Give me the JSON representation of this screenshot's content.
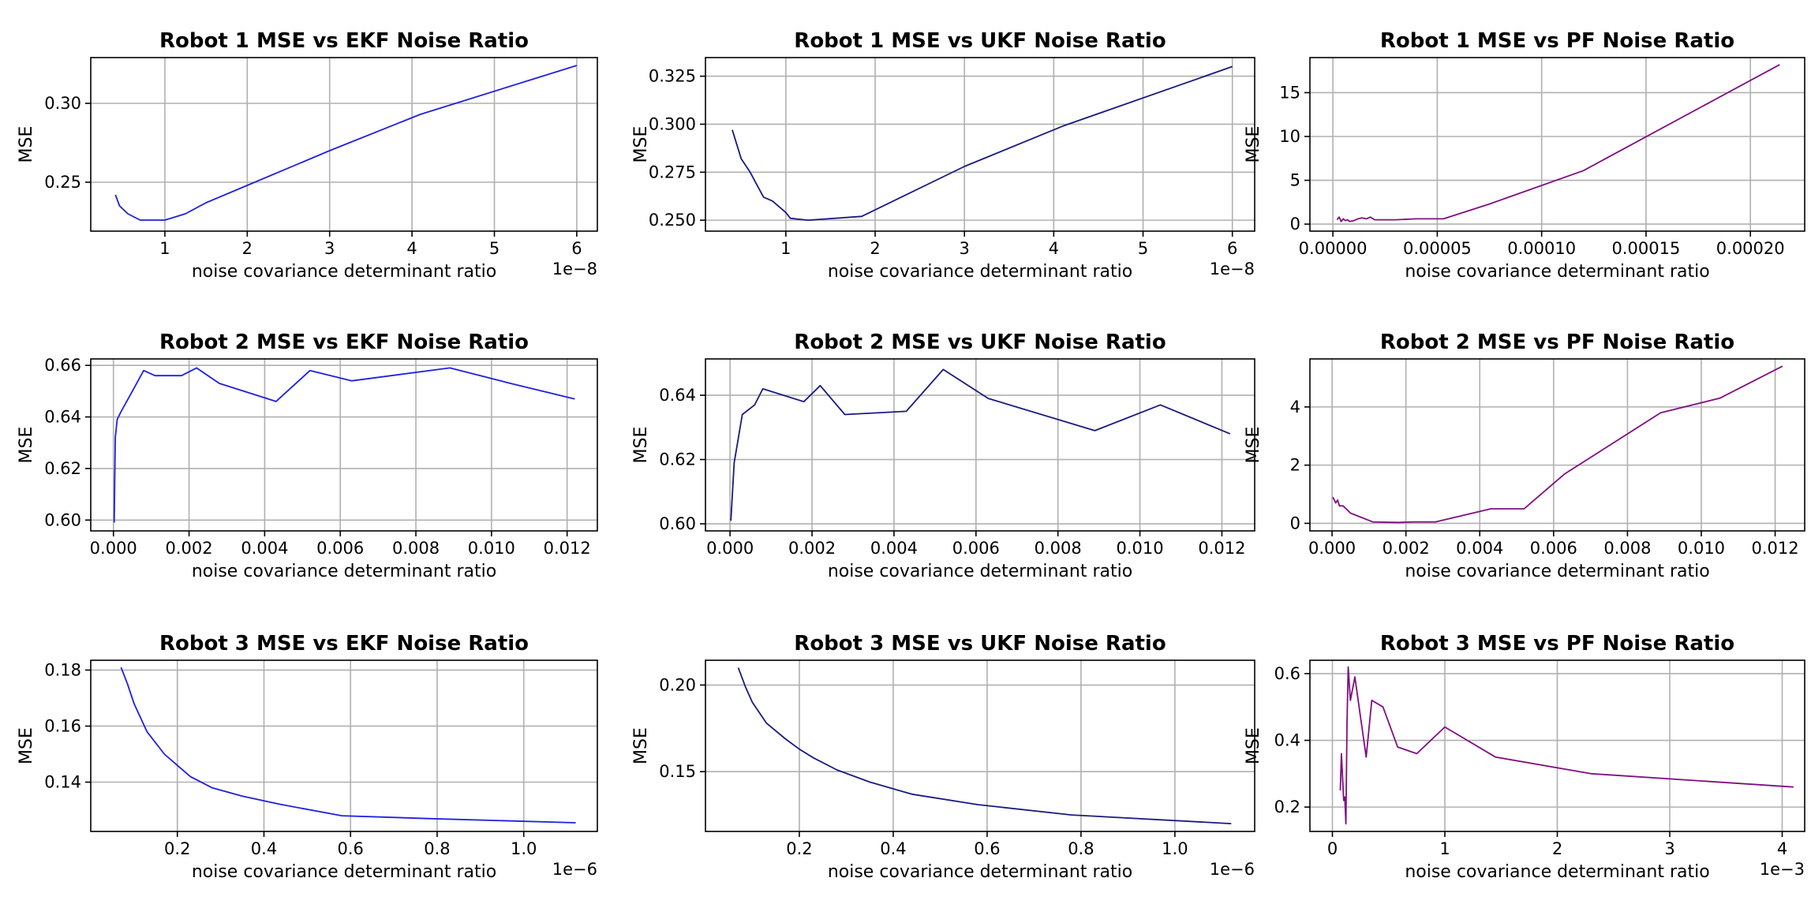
{
  "chart_data": [
    {
      "type": "line",
      "title": "Robot 1 MSE vs EKF Noise Ratio",
      "xlabel": "noise covariance determinant ratio",
      "ylabel": "MSE",
      "offset_label": "1e−8",
      "xlim": [
        0.1,
        6.25
      ],
      "ylim": [
        0.219,
        0.329
      ],
      "x_ticks": [
        1,
        2,
        3,
        4,
        5,
        6
      ],
      "x_tick_labels": [
        "1",
        "2",
        "3",
        "4",
        "5",
        "6"
      ],
      "y_ticks": [
        0.25,
        0.3
      ],
      "y_tick_labels": [
        "0.25",
        "0.30"
      ],
      "grid": true,
      "color": "#1f1fdf",
      "series": [
        {
          "x": [
            0.4,
            0.45,
            0.55,
            0.7,
            0.85,
            1.0,
            1.25,
            1.5,
            2.0,
            3.0,
            4.1,
            6.0
          ],
          "y": [
            0.242,
            0.235,
            0.23,
            0.226,
            0.226,
            0.226,
            0.23,
            0.237,
            0.248,
            0.27,
            0.293,
            0.324
          ]
        }
      ]
    },
    {
      "type": "line",
      "title": "Robot 1 MSE vs UKF Noise Ratio",
      "xlabel": "noise covariance determinant ratio",
      "ylabel": "MSE",
      "offset_label": "1e−8",
      "xlim": [
        0.1,
        6.25
      ],
      "ylim": [
        0.2443,
        0.3347
      ],
      "x_ticks": [
        1,
        2,
        3,
        4,
        5,
        6
      ],
      "x_tick_labels": [
        "1",
        "2",
        "3",
        "4",
        "5",
        "6"
      ],
      "y_ticks": [
        0.25,
        0.275,
        0.3,
        0.325
      ],
      "y_tick_labels": [
        "0.250",
        "0.275",
        "0.300",
        "0.325"
      ],
      "grid": true,
      "color": "#1a1a80",
      "series": [
        {
          "x": [
            0.4,
            0.5,
            0.6,
            0.75,
            0.85,
            1.0,
            1.05,
            1.25,
            1.85,
            3.0,
            4.1,
            6.0
          ],
          "y": [
            0.297,
            0.282,
            0.275,
            0.262,
            0.26,
            0.254,
            0.251,
            0.25,
            0.252,
            0.278,
            0.299,
            0.33
          ]
        }
      ]
    },
    {
      "type": "line",
      "title": "Robot 1 MSE vs PF Noise Ratio",
      "xlabel": "noise covariance determinant ratio",
      "ylabel": "MSE",
      "offset_label": "",
      "xlim": [
        -1.1e-05,
        0.000226
      ],
      "ylim": [
        -0.8,
        19.0
      ],
      "x_ticks": [
        0.0,
        5e-05,
        0.0001,
        0.00015,
        0.0002
      ],
      "x_tick_labels": [
        "0.00000",
        "0.00005",
        "0.00010",
        "0.00015",
        "0.00020"
      ],
      "y_ticks": [
        0,
        5,
        10,
        15
      ],
      "y_tick_labels": [
        "0",
        "5",
        "10",
        "15"
      ],
      "grid": true,
      "color": "#7f0f7f",
      "series": [
        {
          "x": [
            2e-06,
            3e-06,
            4e-06,
            5e-06,
            6e-06,
            7e-06,
            8e-06,
            1e-05,
            1.2e-05,
            1.4e-05,
            1.6e-05,
            1.8e-05,
            2e-05,
            3e-05,
            4e-05,
            5.3e-05,
            7.5e-05,
            0.00012,
            0.000214
          ],
          "y": [
            0.5,
            0.8,
            0.3,
            0.6,
            0.4,
            0.5,
            0.3,
            0.4,
            0.6,
            0.7,
            0.6,
            0.8,
            0.5,
            0.5,
            0.6,
            0.6,
            2.3,
            6.1,
            18.2
          ]
        }
      ]
    },
    {
      "type": "line",
      "title": "Robot 2 MSE vs EKF Noise Ratio",
      "xlabel": "noise covariance determinant ratio",
      "ylabel": "MSE",
      "offset_label": "",
      "xlim": [
        -0.0006,
        0.0128
      ],
      "ylim": [
        0.5958,
        0.6625
      ],
      "x_ticks": [
        0.0,
        0.002,
        0.004,
        0.006,
        0.008,
        0.01,
        0.012
      ],
      "x_tick_labels": [
        "0.000",
        "0.002",
        "0.004",
        "0.006",
        "0.008",
        "0.010",
        "0.012"
      ],
      "y_ticks": [
        0.6,
        0.62,
        0.64,
        0.66
      ],
      "y_tick_labels": [
        "0.60",
        "0.62",
        "0.64",
        "0.66"
      ],
      "grid": true,
      "color": "#1f1fdf",
      "series": [
        {
          "x": [
            2e-05,
            5e-05,
            0.0001,
            0.0002,
            0.0005,
            0.0008,
            0.0011,
            0.0018,
            0.0022,
            0.0028,
            0.0043,
            0.0052,
            0.0063,
            0.0089,
            0.0105,
            0.0122
          ],
          "y": [
            0.599,
            0.632,
            0.639,
            0.642,
            0.65,
            0.658,
            0.656,
            0.656,
            0.659,
            0.653,
            0.646,
            0.658,
            0.654,
            0.659,
            0.653,
            0.647
          ]
        }
      ]
    },
    {
      "type": "line",
      "title": "Robot 2 MSE vs UKF Noise Ratio",
      "xlabel": "noise covariance determinant ratio",
      "ylabel": "MSE",
      "offset_label": "",
      "xlim": [
        -0.0006,
        0.0128
      ],
      "ylim": [
        0.5978,
        0.6513
      ],
      "x_ticks": [
        0.0,
        0.002,
        0.004,
        0.006,
        0.008,
        0.01,
        0.012
      ],
      "x_tick_labels": [
        "0.000",
        "0.002",
        "0.004",
        "0.006",
        "0.008",
        "0.010",
        "0.012"
      ],
      "y_ticks": [
        0.6,
        0.62,
        0.64
      ],
      "y_tick_labels": [
        "0.60",
        "0.62",
        "0.64"
      ],
      "grid": true,
      "color": "#1a1a80",
      "series": [
        {
          "x": [
            2e-05,
            0.0001,
            0.0003,
            0.0006,
            0.0008,
            0.0018,
            0.0022,
            0.0028,
            0.0043,
            0.0052,
            0.0063,
            0.0089,
            0.0105,
            0.0122
          ],
          "y": [
            0.601,
            0.619,
            0.634,
            0.637,
            0.642,
            0.638,
            0.643,
            0.634,
            0.635,
            0.648,
            0.639,
            0.629,
            0.637,
            0.628
          ]
        }
      ]
    },
    {
      "type": "line",
      "title": "Robot 2 MSE vs PF Noise Ratio",
      "xlabel": "noise covariance determinant ratio",
      "ylabel": "MSE",
      "offset_label": "",
      "xlim": [
        -0.0006,
        0.0128
      ],
      "ylim": [
        -0.26,
        5.65
      ],
      "x_ticks": [
        0.0,
        0.002,
        0.004,
        0.006,
        0.008,
        0.01,
        0.012
      ],
      "x_tick_labels": [
        "0.000",
        "0.002",
        "0.004",
        "0.006",
        "0.008",
        "0.010",
        "0.012"
      ],
      "y_ticks": [
        0,
        2,
        4
      ],
      "y_tick_labels": [
        "0",
        "2",
        "4"
      ],
      "grid": true,
      "color": "#7f0f7f",
      "series": [
        {
          "x": [
            2e-05,
            0.0001,
            0.00015,
            0.0002,
            0.0003,
            0.0005,
            0.0008,
            0.0011,
            0.0018,
            0.0022,
            0.0028,
            0.0043,
            0.0052,
            0.0063,
            0.0089,
            0.0105,
            0.0122
          ],
          "y": [
            0.9,
            0.7,
            0.8,
            0.6,
            0.6,
            0.35,
            0.2,
            0.05,
            0.03,
            0.05,
            0.05,
            0.5,
            0.5,
            1.7,
            3.8,
            4.3,
            5.4
          ]
        }
      ]
    },
    {
      "type": "line",
      "title": "Robot 3 MSE vs EKF Noise Ratio",
      "xlabel": "noise covariance determinant ratio",
      "ylabel": "MSE",
      "offset_label": "1e−6",
      "xlim": [
        0.0,
        1.17
      ],
      "ylim": [
        0.1224,
        0.1835
      ],
      "x_ticks": [
        0.2,
        0.4,
        0.6,
        0.8,
        1.0
      ],
      "x_tick_labels": [
        "0.2",
        "0.4",
        "0.6",
        "0.8",
        "1.0"
      ],
      "y_ticks": [
        0.14,
        0.16,
        0.18
      ],
      "y_tick_labels": [
        "0.14",
        "0.16",
        "0.18"
      ],
      "grid": true,
      "color": "#1f1fdf",
      "series": [
        {
          "x": [
            0.07,
            0.085,
            0.1,
            0.13,
            0.17,
            0.2,
            0.23,
            0.28,
            0.35,
            0.44,
            0.58,
            0.78,
            1.12
          ],
          "y": [
            0.181,
            0.175,
            0.168,
            0.158,
            0.15,
            0.146,
            0.142,
            0.138,
            0.135,
            0.132,
            0.128,
            0.127,
            0.1255
          ]
        }
      ]
    },
    {
      "type": "line",
      "title": "Robot 3 MSE vs UKF Noise Ratio",
      "xlabel": "noise covariance determinant ratio",
      "ylabel": "MSE",
      "offset_label": "1e−6",
      "xlim": [
        0.0,
        1.17
      ],
      "ylim": [
        0.1155,
        0.2143
      ],
      "x_ticks": [
        0.2,
        0.4,
        0.6,
        0.8,
        1.0
      ],
      "x_tick_labels": [
        "0.2",
        "0.4",
        "0.6",
        "0.8",
        "1.0"
      ],
      "y_ticks": [
        0.15,
        0.2
      ],
      "y_tick_labels": [
        "0.15",
        "0.20"
      ],
      "grid": true,
      "color": "#1a1a80",
      "series": [
        {
          "x": [
            0.07,
            0.085,
            0.1,
            0.13,
            0.17,
            0.2,
            0.23,
            0.28,
            0.35,
            0.44,
            0.58,
            0.78,
            1.12
          ],
          "y": [
            0.21,
            0.199,
            0.19,
            0.178,
            0.169,
            0.163,
            0.158,
            0.151,
            0.144,
            0.137,
            0.131,
            0.125,
            0.12
          ]
        }
      ]
    },
    {
      "type": "line",
      "title": "Robot 3 MSE vs PF Noise Ratio",
      "xlabel": "noise covariance determinant ratio",
      "ylabel": "MSE",
      "offset_label": "1e−3",
      "xlim": [
        -0.0002,
        0.0042
      ],
      "ylim": [
        0.127,
        0.64
      ],
      "x_ticks": [
        0.0,
        0.001,
        0.002,
        0.003,
        0.004
      ],
      "x_tick_labels": [
        "0",
        "1",
        "2",
        "3",
        "4"
      ],
      "y_ticks": [
        0.2,
        0.4,
        0.6
      ],
      "y_tick_labels": [
        "0.2",
        "0.4",
        "0.6"
      ],
      "grid": true,
      "color": "#7f0f7f",
      "series": [
        {
          "x": [
            7e-05,
            8e-05,
            0.0001,
            0.00011,
            0.00012,
            0.00013,
            0.00014,
            0.00016,
            0.0002,
            0.00025,
            0.0003,
            0.00035,
            0.00045,
            0.00058,
            0.00075,
            0.001,
            0.00145,
            0.0023,
            0.0041
          ],
          "y": [
            0.25,
            0.36,
            0.22,
            0.23,
            0.15,
            0.45,
            0.62,
            0.52,
            0.59,
            0.47,
            0.35,
            0.52,
            0.5,
            0.38,
            0.36,
            0.44,
            0.35,
            0.3,
            0.26
          ]
        }
      ]
    }
  ]
}
